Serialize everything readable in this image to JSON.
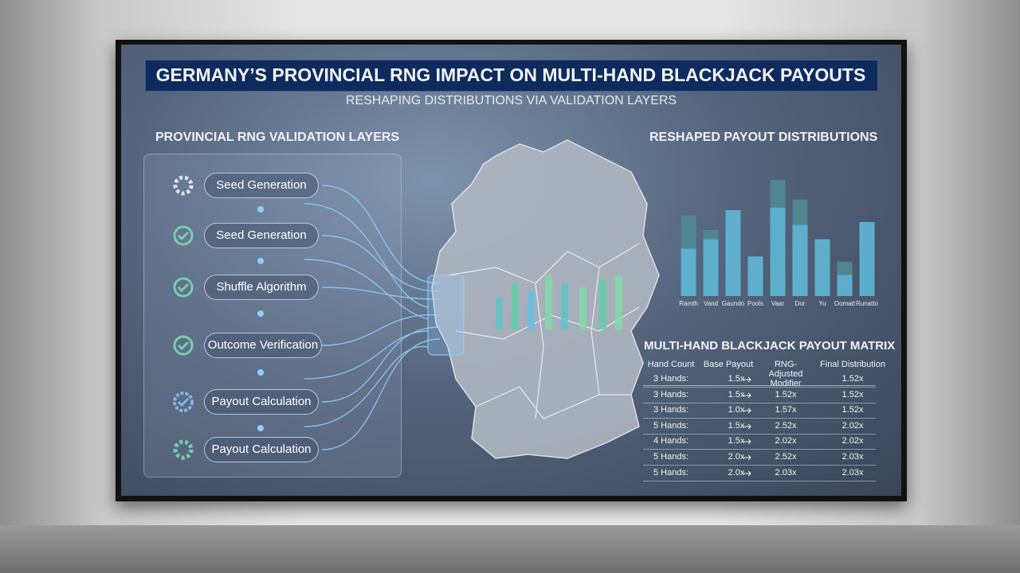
{
  "header": {
    "title": "GERMANY’S PROVINCIAL RNG IMPACT ON MULTI-HAND BLACKJACK PAYOUTS",
    "subtitle": "RESHAPING DISTRIBUTIONS VIA VALIDATION LAYERS"
  },
  "validation": {
    "title": "PROVINCIAL RNG VALIDATION LAYERS",
    "steps": [
      "Seed Generation",
      "Seed Generation",
      "Shuffle Algorithm",
      "Outcome Verification",
      "Payout Calculation",
      "Payout Calculation"
    ]
  },
  "distribution": {
    "title": "RESHAPED PAYOUT DISTRIBUTIONS",
    "chart_data": {
      "type": "bar",
      "stacked": true,
      "categories": [
        "Ramth",
        "Vand",
        "Gaundo",
        "Pools",
        "Vaar",
        "Dor",
        "Yu",
        "Oomatt",
        "Runatto"
      ],
      "series": [
        {
          "color": "#5fb8d6",
          "values": [
            36,
            43,
            65,
            30,
            67,
            54,
            43,
            16,
            56
          ]
        },
        {
          "color": "#4f8a93",
          "values": [
            25,
            7,
            0,
            0,
            21,
            19,
            0,
            10,
            0
          ]
        }
      ],
      "ylim": [
        0,
        100
      ]
    }
  },
  "matrix": {
    "title": "MULTI-HAND BLACKJACK PAYOUT MATRIX",
    "headers": {
      "hands": "Hand Count",
      "base": "Base Payout",
      "modifier": "RNG-Adjusted Modifier",
      "final": "Final Distribution"
    },
    "rows": [
      {
        "hands": "3 Hands:",
        "base": "1.5x",
        "final": "1.52x"
      },
      {
        "hands": "3 Hands:",
        "base": "1.5x",
        "modifier": "1.52x",
        "final": "1.52x"
      },
      {
        "hands": "3 Hands:",
        "base": "1.0x",
        "modifier": "1.57x",
        "final": "1.52x"
      },
      {
        "hands": "5 Hands:",
        "base": "1.5x",
        "modifier": "2.52x",
        "final": "2.02x"
      },
      {
        "hands": "4 Hands:",
        "base": "1.5x",
        "modifier": "2.02x",
        "final": "2.02x"
      },
      {
        "hands": "5 Hands:",
        "base": "2.0x",
        "modifier": "2.52x",
        "final": "2.03x"
      },
      {
        "hands": "5 Hands:",
        "base": "2.0x",
        "modifier": "2.03x",
        "final": "2.03x"
      }
    ]
  }
}
